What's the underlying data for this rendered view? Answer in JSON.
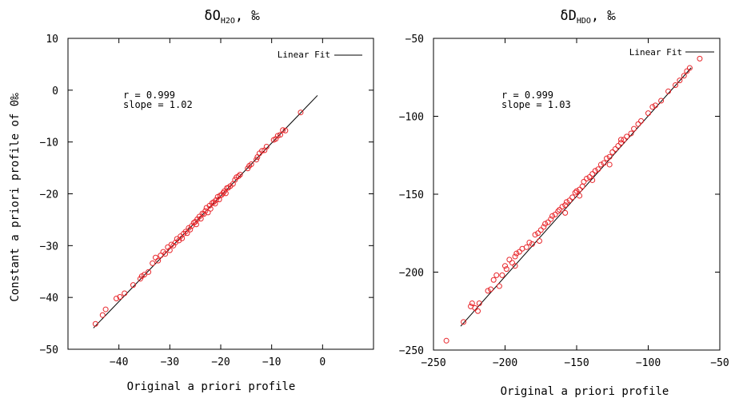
{
  "chart_data": [
    {
      "type": "scatter",
      "title_main": "δO",
      "title_sub": "H2O",
      "title_unit": ", ‰",
      "xlabel": "Original a priori profile",
      "ylabel": "Constant a priori profile of 0‰",
      "xlim": [
        -50,
        10
      ],
      "ylim": [
        -50,
        10
      ],
      "xticks": [
        -40,
        -30,
        -20,
        -10,
        0
      ],
      "yticks": [
        10,
        0,
        -10,
        -20,
        -30,
        -40,
        -50
      ],
      "xtick_labels": [
        "−40",
        "−30",
        "−20",
        "−10",
        "0"
      ],
      "ytick_labels": [
        "10",
        "0",
        "−10",
        "−20",
        "−30",
        "−40",
        "−50"
      ],
      "annotation": [
        "r  = 0.999",
        "slope = 1.02"
      ],
      "legend": {
        "label": "Linear Fit",
        "position": "top-right"
      },
      "grid": false,
      "marker_color": "#e8262b",
      "fit": {
        "x": [
          -45,
          -1
        ],
        "y": [
          -45.9,
          -1.02
        ]
      },
      "points": [
        [
          -44.6,
          -45.1
        ],
        [
          -43.2,
          -43.4
        ],
        [
          -42.6,
          -42.3
        ],
        [
          -40.5,
          -40.2
        ],
        [
          -39.8,
          -39.9
        ],
        [
          -38.9,
          -39.2
        ],
        [
          -37.2,
          -37.6
        ],
        [
          -35.8,
          -36.4
        ],
        [
          -35.5,
          -35.9
        ],
        [
          -35.0,
          -35.6
        ],
        [
          -34.2,
          -35.1
        ],
        [
          -33.4,
          -33.4
        ],
        [
          -32.8,
          -32.3
        ],
        [
          -32.3,
          -32.9
        ],
        [
          -31.8,
          -31.9
        ],
        [
          -31.3,
          -31.2
        ],
        [
          -30.9,
          -31.6
        ],
        [
          -30.4,
          -30.3
        ],
        [
          -30.0,
          -30.9
        ],
        [
          -29.7,
          -29.8
        ],
        [
          -29.3,
          -30.0
        ],
        [
          -28.9,
          -29.4
        ],
        [
          -28.6,
          -28.7
        ],
        [
          -28.2,
          -29.0
        ],
        [
          -27.9,
          -28.2
        ],
        [
          -27.6,
          -28.6
        ],
        [
          -27.3,
          -27.7
        ],
        [
          -26.9,
          -27.3
        ],
        [
          -26.6,
          -27.6
        ],
        [
          -26.3,
          -26.6
        ],
        [
          -26.0,
          -26.9
        ],
        [
          -25.7,
          -26.2
        ],
        [
          -25.3,
          -25.6
        ],
        [
          -25.0,
          -25.4
        ],
        [
          -24.8,
          -25.9
        ],
        [
          -24.6,
          -24.9
        ],
        [
          -24.2,
          -24.4
        ],
        [
          -23.9,
          -24.8
        ],
        [
          -23.6,
          -23.8
        ],
        [
          -23.3,
          -23.9
        ],
        [
          -23.0,
          -23.3
        ],
        [
          -22.8,
          -22.7
        ],
        [
          -22.5,
          -23.6
        ],
        [
          -22.2,
          -22.3
        ],
        [
          -22.0,
          -22.9
        ],
        [
          -21.7,
          -21.8
        ],
        [
          -21.4,
          -21.6
        ],
        [
          -21.1,
          -21.9
        ],
        [
          -20.9,
          -21.2
        ],
        [
          -20.6,
          -20.6
        ],
        [
          -20.3,
          -21.1
        ],
        [
          -20.1,
          -20.3
        ],
        [
          -19.8,
          -20.2
        ],
        [
          -19.5,
          -19.8
        ],
        [
          -19.3,
          -19.5
        ],
        [
          -19.0,
          -19.9
        ],
        [
          -18.8,
          -18.9
        ],
        [
          -18.5,
          -18.8
        ],
        [
          -18.1,
          -18.5
        ],
        [
          -17.6,
          -18.1
        ],
        [
          -17.2,
          -17.3
        ],
        [
          -16.9,
          -16.8
        ],
        [
          -16.5,
          -16.6
        ],
        [
          -16.2,
          -16.3
        ],
        [
          -14.7,
          -15.1
        ],
        [
          -14.4,
          -14.6
        ],
        [
          -14.0,
          -14.3
        ],
        [
          -13.0,
          -13.4
        ],
        [
          -12.8,
          -12.9
        ],
        [
          -12.4,
          -12.2
        ],
        [
          -11.9,
          -11.7
        ],
        [
          -11.4,
          -11.6
        ],
        [
          -11.0,
          -10.9
        ],
        [
          -9.6,
          -9.6
        ],
        [
          -9.2,
          -9.4
        ],
        [
          -8.8,
          -8.8
        ],
        [
          -8.3,
          -8.6
        ],
        [
          -7.8,
          -7.7
        ],
        [
          -7.3,
          -7.8
        ],
        [
          -4.3,
          -4.3
        ]
      ]
    },
    {
      "type": "scatter",
      "title_main": "δD",
      "title_sub": "HDO",
      "title_unit": ", ‰",
      "xlabel": "Original a priori profile",
      "ylabel": "",
      "xlim": [
        -250,
        -50
      ],
      "ylim": [
        -250,
        -50
      ],
      "xticks": [
        -250,
        -200,
        -150,
        -100,
        -50
      ],
      "yticks": [
        -50,
        -100,
        -150,
        -200,
        -250
      ],
      "xtick_labels": [
        "−250",
        "−200",
        "−150",
        "−100",
        "−50"
      ],
      "ytick_labels": [
        "−50",
        "−100",
        "−150",
        "−200",
        "−250"
      ],
      "annotation": [
        "r  = 0.999",
        "slope = 1.03"
      ],
      "legend": {
        "label": "Linear Fit",
        "position": "top-right"
      },
      "grid": false,
      "marker_color": "#e8262b",
      "fit": {
        "x": [
          -231,
          -70
        ],
        "y": [
          -234.7,
          -68.9
        ]
      },
      "points": [
        [
          -241,
          -244
        ],
        [
          -229,
          -232
        ],
        [
          -224,
          -222
        ],
        [
          -223,
          -220
        ],
        [
          -221,
          -223
        ],
        [
          -219,
          -225
        ],
        [
          -218,
          -220
        ],
        [
          -212,
          -212
        ],
        [
          -210,
          -211
        ],
        [
          -206,
          -202
        ],
        [
          -204,
          -209
        ],
        [
          -202,
          -202
        ],
        [
          -200,
          -196
        ],
        [
          -199,
          -198
        ],
        [
          -197,
          -192
        ],
        [
          -195,
          -194
        ],
        [
          -193,
          -190
        ],
        [
          -192,
          -188
        ],
        [
          -190,
          -187
        ],
        [
          -188,
          -185
        ],
        [
          -185,
          -184
        ],
        [
          -183,
          -181
        ],
        [
          -181,
          -182
        ],
        [
          -179,
          -176
        ],
        [
          -177,
          -175
        ],
        [
          -175,
          -173
        ],
        [
          -173,
          -171
        ],
        [
          -172,
          -169
        ],
        [
          -170,
          -168
        ],
        [
          -168,
          -166
        ],
        [
          -167,
          -164
        ],
        [
          -165,
          -163
        ],
        [
          -163,
          -161
        ],
        [
          -162,
          -160
        ],
        [
          -160,
          -158
        ],
        [
          -158,
          -157
        ],
        [
          -157,
          -155
        ],
        [
          -155,
          -154
        ],
        [
          -153,
          -152
        ],
        [
          -151,
          -149
        ],
        [
          -150,
          -148
        ],
        [
          -148,
          -147
        ],
        [
          -146,
          -145
        ],
        [
          -145,
          -142
        ],
        [
          -143,
          -140
        ],
        [
          -141,
          -139
        ],
        [
          -139,
          -137
        ],
        [
          -137,
          -135
        ],
        [
          -135,
          -134
        ],
        [
          -133,
          -131
        ],
        [
          -131,
          -130
        ],
        [
          -129,
          -127
        ],
        [
          -127,
          -126
        ],
        [
          -125,
          -123
        ],
        [
          -123,
          -121
        ],
        [
          -121,
          -119
        ],
        [
          -119,
          -117
        ],
        [
          -117,
          -115
        ],
        [
          -115,
          -113
        ],
        [
          -112,
          -111
        ],
        [
          -110,
          -108
        ],
        [
          -105,
          -103
        ],
        [
          -100,
          -98
        ],
        [
          -97,
          -94
        ],
        [
          -95,
          -93
        ],
        [
          -91,
          -90
        ],
        [
          -86,
          -84
        ],
        [
          -81,
          -80
        ],
        [
          -78,
          -77
        ],
        [
          -75,
          -74
        ],
        [
          -73,
          -71
        ],
        [
          -71,
          -69
        ],
        [
          -64,
          -63
        ],
        [
          -148,
          -151
        ],
        [
          -139,
          -141
        ],
        [
          -127,
          -131
        ],
        [
          -119,
          -115
        ],
        [
          -107,
          -105
        ],
        [
          -158,
          -162
        ],
        [
          -176,
          -180
        ],
        [
          -193,
          -196
        ],
        [
          -208,
          -205
        ]
      ]
    }
  ]
}
